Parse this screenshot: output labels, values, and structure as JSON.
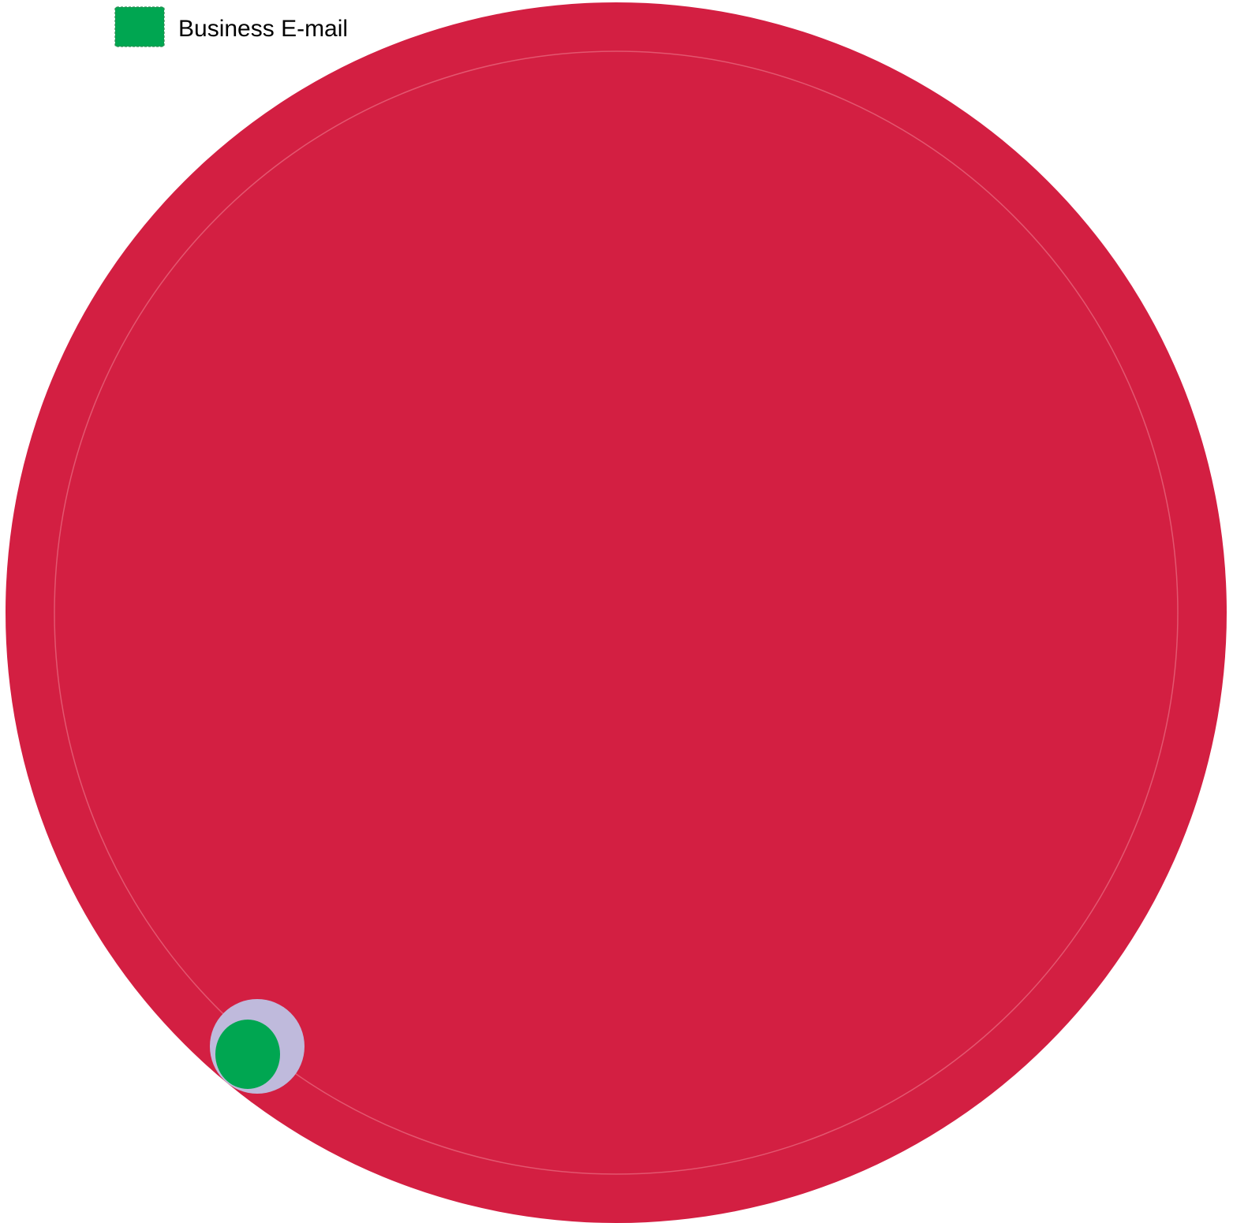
{
  "chart_data": {
    "type": "packed-circles",
    "legend": {
      "placement": "top-left",
      "items": [
        {
          "label": "Business E-mail",
          "color": "#00a651"
        }
      ]
    },
    "circles": [
      {
        "name": "outer",
        "color": "#d31f42",
        "relative_size": 1.0
      },
      {
        "name": "inner",
        "color": "#d31f42",
        "outline": "#e3566f",
        "relative_size": 0.92
      },
      {
        "name": "small-lavender",
        "color": "#bfbadc",
        "relative_size": 0.077
      },
      {
        "name": "small-green",
        "color": "#00a651",
        "relative_size": 0.054
      }
    ]
  }
}
